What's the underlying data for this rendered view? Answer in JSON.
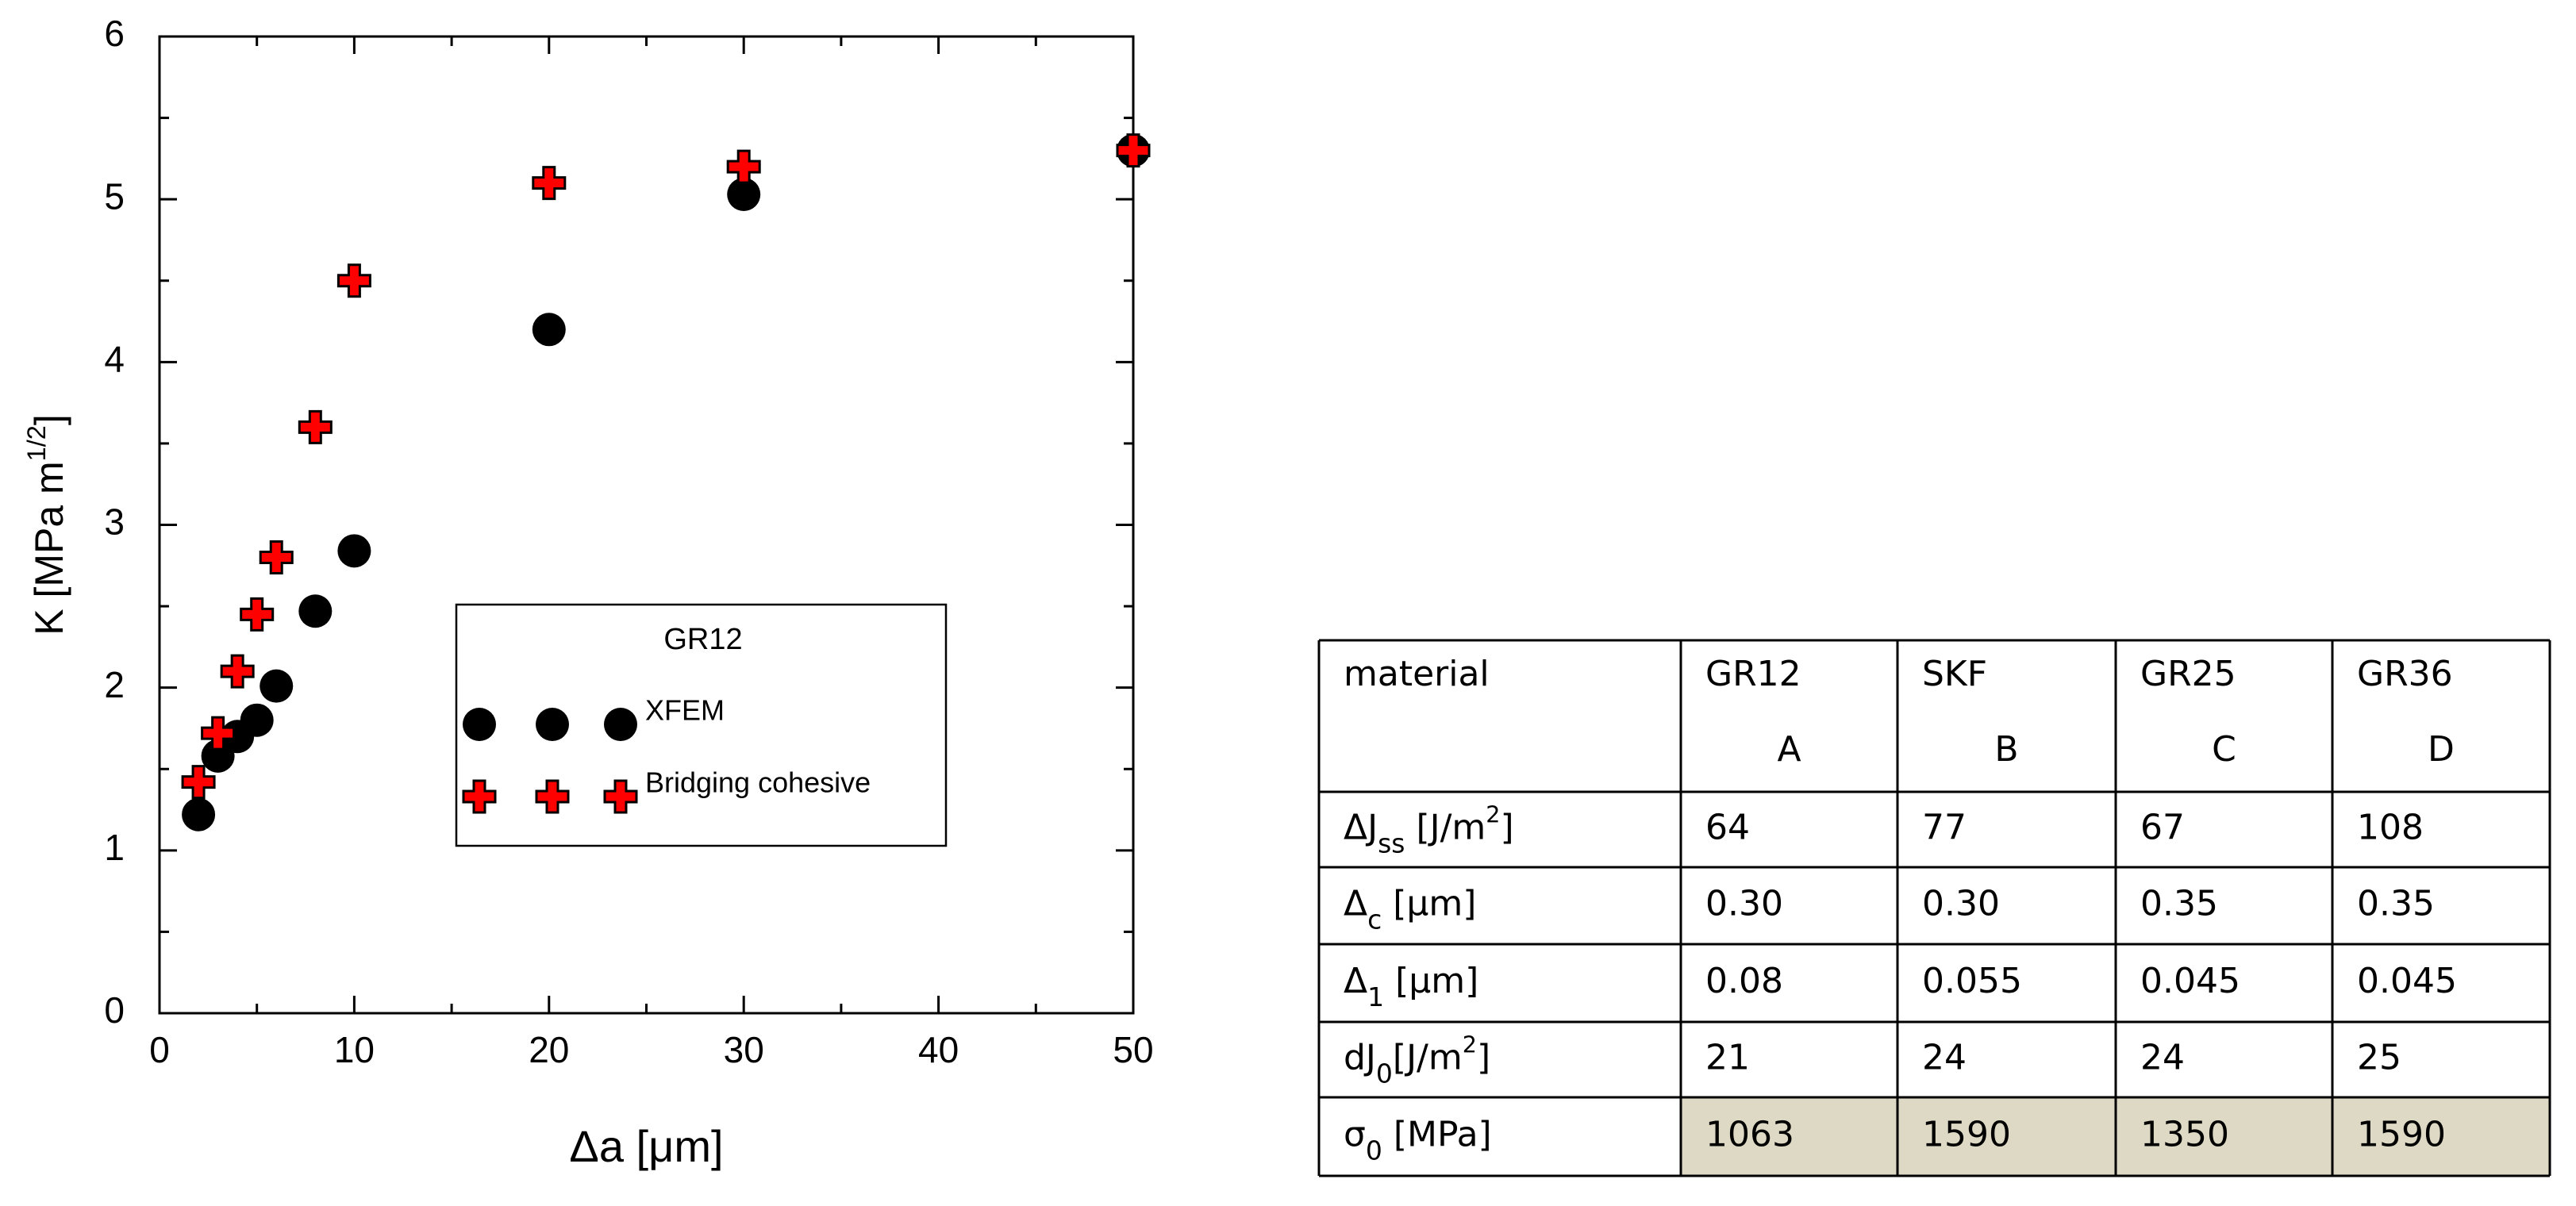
{
  "chart_data": {
    "type": "scatter",
    "xlabel": "Δa [μm]",
    "ylabel": [
      {
        "text": "K [MPa m"
      },
      {
        "sup": "1/2"
      },
      {
        "text": "]"
      }
    ],
    "legend_title": "GR12",
    "series": [
      {
        "name": "XFEM",
        "marker": "circle",
        "color": "#000000",
        "x": [
          2,
          3,
          4,
          5,
          6,
          8,
          10,
          20,
          30,
          50
        ],
        "values": [
          1.22,
          1.58,
          1.7,
          1.8,
          2.01,
          2.47,
          2.84,
          4.2,
          5.03,
          5.3
        ]
      },
      {
        "name": "Bridging cohesive",
        "marker": "plus",
        "color": "#ff0000",
        "x": [
          2,
          3,
          4,
          5,
          6,
          8,
          10,
          20,
          30,
          50
        ],
        "values": [
          1.42,
          1.72,
          2.1,
          2.45,
          2.8,
          3.6,
          4.5,
          5.1,
          5.2,
          5.3
        ]
      }
    ],
    "xlim": [
      0,
      50
    ],
    "xticks": [
      0,
      10,
      20,
      30,
      40,
      50
    ],
    "xminorticks": [
      5,
      15,
      25,
      35,
      45
    ],
    "ylim": [
      0,
      6
    ],
    "yticks": [
      0,
      1,
      2,
      3,
      4,
      5,
      6
    ],
    "yminorticks": [
      0.5,
      1.5,
      2.5,
      3.5,
      4.5,
      5.5
    ],
    "grid": false
  },
  "table": {
    "header": [
      {
        "top": "material"
      },
      {
        "top": "GR12",
        "bottom": "A"
      },
      {
        "top": "SKF",
        "bottom": "B"
      },
      {
        "top": "GR25",
        "bottom": "C"
      },
      {
        "top": "GR36",
        "bottom": "D"
      }
    ],
    "rows": [
      {
        "label": [
          {
            "text": "ΔJ"
          },
          {
            "sub": "ss"
          },
          {
            "text": " [J/m"
          },
          {
            "sup": "2"
          },
          {
            "text": "]"
          }
        ],
        "cells": [
          "64",
          "77",
          "67",
          "108"
        ]
      },
      {
        "label": [
          {
            "text": "Δ"
          },
          {
            "sub": "c"
          },
          {
            "text": " [μm]"
          }
        ],
        "cells": [
          "0.30",
          "0.30",
          "0.35",
          "0.35"
        ]
      },
      {
        "label": [
          {
            "text": "Δ"
          },
          {
            "sub": "1"
          },
          {
            "text": " [μm]"
          }
        ],
        "cells": [
          "0.08",
          "0.055",
          "0.045",
          "0.045"
        ]
      },
      {
        "label": [
          {
            "text": "dJ"
          },
          {
            "sub": "0"
          },
          {
            "text": "[J/m"
          },
          {
            "sup": "2"
          },
          {
            "text": "]"
          }
        ],
        "cells": [
          "21",
          "24",
          "24",
          "25"
        ]
      },
      {
        "label": [
          {
            "text": "σ"
          },
          {
            "sub": "0"
          },
          {
            "text": " [MPa]"
          }
        ],
        "cells": [
          "1063",
          "1590",
          "1350",
          "1590"
        ],
        "highlight": "#ddd9c4"
      }
    ]
  }
}
